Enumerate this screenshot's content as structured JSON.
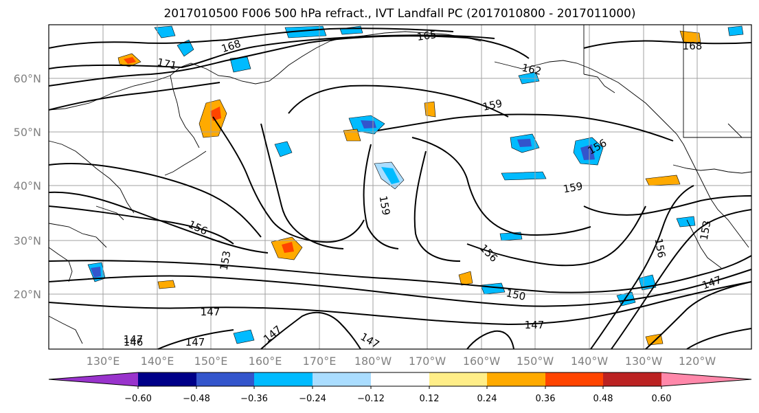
{
  "title": "2017010500 F006 500 hPa refract., IVT Landfall PC (2017010800 - 2017011000)",
  "lat_labels": [
    "60°N",
    "50°N",
    "40°N",
    "30°N",
    "20°N"
  ],
  "lon_labels": [
    "130°E",
    "140°E",
    "150°E",
    "160°E",
    "170°E",
    "180°W",
    "170°W",
    "160°W",
    "150°W",
    "140°W",
    "130°W",
    "120°W"
  ],
  "colorbar": {
    "ticks": [
      "−0.60",
      "−0.48",
      "−0.36",
      "−0.24",
      "−0.12",
      "0.12",
      "0.24",
      "0.36",
      "0.48",
      "0.60"
    ],
    "colors": [
      "#9933cc",
      "#000088",
      "#3355cc",
      "#00bbff",
      "#aaddff",
      "#ffffff",
      "#ffee88",
      "#ffaa00",
      "#ff4400",
      "#bb2222",
      "#ff88aa"
    ]
  },
  "contour_labels": [
    "171",
    "168",
    "165",
    "168",
    "162",
    "159",
    "156",
    "159",
    "159",
    "156",
    "153",
    "156",
    "156",
    "153",
    "150",
    "147",
    "147",
    "147",
    "147",
    "147",
    "146",
    "147",
    "147"
  ],
  "colors": {
    "grid": "#a0a0a0",
    "coast": "#000000",
    "contour": "#000000"
  }
}
